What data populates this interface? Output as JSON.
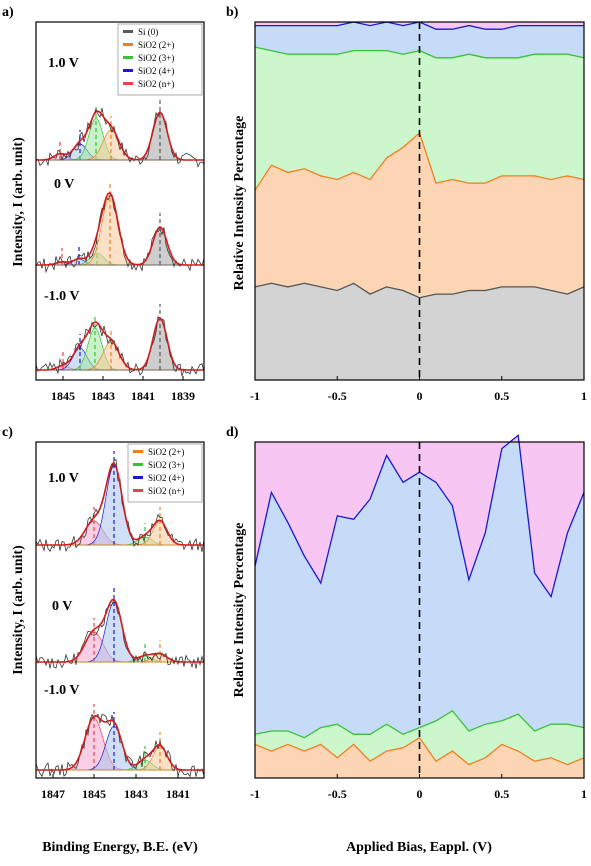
{
  "panels": {
    "a": {
      "label": "a)",
      "traces": [
        {
          "voltage": "1.0 V"
        },
        {
          "voltage": "0 V"
        },
        {
          "voltage": "-1.0 V"
        }
      ],
      "legend": [
        "Si (0)",
        "SiO2 (2+)",
        "SiO2 (3+)",
        "SiO2 (4+)",
        "SiO2 (n+)"
      ],
      "legend_colors": [
        "#595959",
        "#f07f1f",
        "#39c139",
        "#1a1acc",
        "#e8434d"
      ],
      "xticks": [
        "1845",
        "1843",
        "1841",
        "1839"
      ]
    },
    "b": {
      "label": "b)"
    },
    "c": {
      "label": "c)",
      "traces": [
        {
          "voltage": "1.0 V"
        },
        {
          "voltage": "0 V"
        },
        {
          "voltage": "-1.0 V"
        }
      ],
      "legend": [
        "SiO2 (2+)",
        "SiO2 (3+)",
        "SiO2 (4+)",
        "SiO2 (n+)"
      ],
      "legend_colors": [
        "#f07f1f",
        "#39c139",
        "#1a1acc",
        "#e8434d"
      ],
      "xticks": [
        "1847",
        "1845",
        "1843",
        "1841"
      ]
    },
    "d": {
      "label": "d)"
    }
  },
  "labels": {
    "intensity_ylabel": "Intensity, I (arb. unit)",
    "rel_ylabel": "Relative Intensity Percentage",
    "xlabel_left": "Binding Energy, B.E. (eV)",
    "xlabel_right": "Applied Bias, Eappl. (V)"
  },
  "chart_data": [
    {
      "panel": "b",
      "type": "area",
      "xlabel": "Applied Bias, Eappl. (V)",
      "ylabel": "Relative Intensity Percentage",
      "xlim": [
        -1,
        1
      ],
      "ylim": [
        0,
        100
      ],
      "xticks": [
        "-1",
        "-0.5",
        "0",
        "0.5",
        "1"
      ],
      "x": [
        -1,
        -0.9,
        -0.8,
        -0.7,
        -0.6,
        -0.5,
        -0.4,
        -0.3,
        -0.2,
        -0.1,
        0,
        0.1,
        0.2,
        0.3,
        0.4,
        0.5,
        0.6,
        0.7,
        0.8,
        0.9,
        1
      ],
      "series": [
        {
          "name": "Si (0)",
          "color": "#d3d3d3",
          "line": "#555555",
          "values": [
            26,
            27,
            26,
            27,
            26,
            25,
            27,
            24,
            26,
            25,
            23,
            24,
            24,
            25,
            25,
            26,
            26,
            26,
            25,
            24,
            26
          ]
        },
        {
          "name": "SiO2 (2+)",
          "color": "#fcd5b4",
          "line": "#f07f1f",
          "values": [
            27,
            33,
            32,
            32,
            31,
            31,
            31,
            32,
            36,
            40,
            46,
            31,
            32,
            30,
            30,
            31,
            31,
            31,
            31,
            33,
            30
          ]
        },
        {
          "name": "SiO2 (3+)",
          "color": "#ccf7cc",
          "line": "#39c139",
          "values": [
            40,
            32,
            33,
            32,
            34,
            35,
            34,
            36,
            30,
            26,
            23,
            35,
            34,
            36,
            35,
            33,
            33,
            34,
            35,
            34,
            34
          ]
        },
        {
          "name": "SiO2 (4+)",
          "color": "#c6dbf7",
          "line": "#1a1acc",
          "values": [
            6,
            7,
            8,
            8,
            8,
            8,
            8,
            7,
            8,
            8,
            8,
            8,
            8,
            8,
            8,
            8,
            9,
            8,
            8,
            8,
            9
          ]
        },
        {
          "name": "SiO2 (n+)",
          "color": "#f7c6f2",
          "line": "#e8434d",
          "values": [
            1,
            1,
            1,
            1,
            1,
            1,
            0,
            1,
            0,
            1,
            0,
            2,
            2,
            1,
            2,
            2,
            1,
            1,
            1,
            1,
            1
          ]
        }
      ]
    },
    {
      "panel": "d",
      "type": "area",
      "xlabel": "Applied Bias, Eappl. (V)",
      "ylabel": "Relative Intensity Percentage",
      "xlim": [
        -1,
        1
      ],
      "ylim": [
        0,
        100
      ],
      "xticks": [
        "-1",
        "-0.5",
        "0",
        "0.5",
        "1"
      ],
      "x": [
        -1,
        -0.9,
        -0.8,
        -0.7,
        -0.6,
        -0.5,
        -0.4,
        -0.3,
        -0.2,
        -0.1,
        0,
        0.1,
        0.2,
        0.3,
        0.4,
        0.5,
        0.6,
        0.7,
        0.8,
        0.9,
        1
      ],
      "series": [
        {
          "name": "SiO2 (2+)",
          "color": "#fcd5b4",
          "line": "#f07f1f",
          "values": [
            10,
            8,
            10,
            8,
            10,
            6,
            10,
            5,
            8,
            9,
            12,
            5,
            8,
            4,
            6,
            10,
            8,
            5,
            6,
            4,
            6
          ]
        },
        {
          "name": "SiO2 (3+)",
          "color": "#ccf7cc",
          "line": "#39c139",
          "values": [
            3,
            6,
            4,
            4,
            5,
            10,
            3,
            8,
            8,
            4,
            3,
            12,
            12,
            10,
            10,
            7,
            11,
            9,
            10,
            12,
            9
          ]
        },
        {
          "name": "SiO2 (4+)",
          "color": "#c6dbf7",
          "line": "#1a1acc",
          "values": [
            50,
            71,
            62,
            54,
            43,
            62,
            64,
            70,
            80,
            75,
            76,
            71,
            61,
            45,
            57,
            81,
            83,
            47,
            38,
            57,
            70
          ]
        },
        {
          "name": "SiO2 (n+)",
          "color": "#f7c6f2",
          "line": "#e8434d",
          "values": [
            37,
            15,
            24,
            34,
            42,
            22,
            23,
            17,
            4,
            12,
            9,
            12,
            19,
            41,
            27,
            2,
            -2,
            39,
            46,
            27,
            15
          ]
        }
      ]
    }
  ]
}
